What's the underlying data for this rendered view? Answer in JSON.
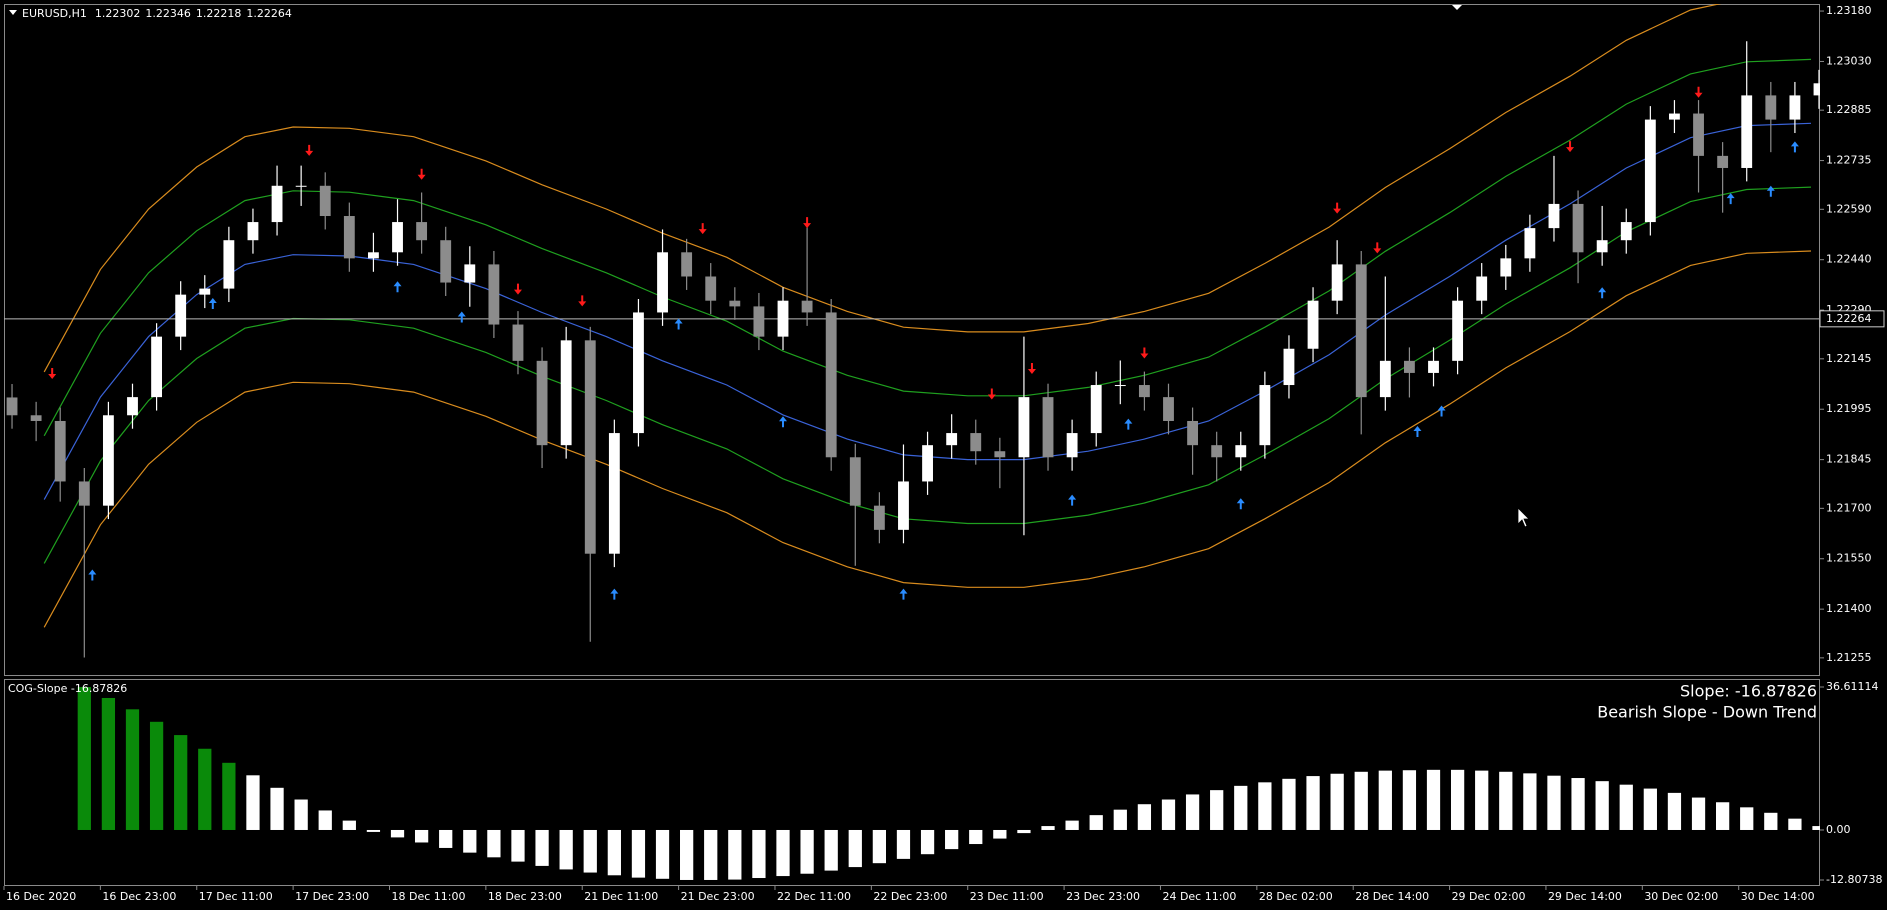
{
  "chart_data": [
    {
      "type": "candlestick",
      "title": "EURUSD,H1",
      "quote": [
        {
          "value": 1.22302,
          "label": "1.22302"
        },
        {
          "value": 1.22346,
          "label": "1.22346"
        },
        {
          "value": 1.22218,
          "label": "1.22218"
        },
        {
          "value": 1.22264,
          "label": "1.22264"
        }
      ],
      "up_color": "#ffffff",
      "down_color": "#8c8c8c",
      "x": [
        1,
        4,
        7,
        10,
        13,
        16,
        19,
        22,
        25,
        28,
        31,
        34,
        37,
        40,
        43,
        46,
        49,
        52,
        55,
        58,
        61,
        64,
        67,
        70,
        73,
        76,
        79,
        82,
        85,
        88,
        91,
        94,
        97,
        100,
        103,
        106,
        109,
        112,
        115,
        118,
        121,
        124,
        127,
        130,
        133,
        136,
        139,
        142,
        145,
        148,
        151,
        154,
        157,
        160,
        163,
        166,
        169,
        172,
        175,
        178,
        181,
        184,
        187,
        190,
        193,
        196,
        199,
        202,
        205,
        208,
        211,
        214,
        217,
        220,
        223,
        226
      ],
      "open": [
        1.2203,
        1.21977,
        1.2196,
        1.2178,
        1.21708,
        1.21977,
        1.22031,
        1.22211,
        1.22336,
        1.22354,
        1.22498,
        1.22552,
        1.2266,
        1.2266,
        1.2257,
        1.22444,
        1.22462,
        1.22552,
        1.22498,
        1.22372,
        1.22426,
        1.22247,
        1.22139,
        1.21888,
        1.222,
        1.21565,
        1.21924,
        1.22283,
        1.22462,
        1.2239,
        1.22318,
        1.22301,
        1.22211,
        1.22318,
        1.22283,
        1.21852,
        1.21708,
        1.21636,
        1.2178,
        1.21888,
        1.21924,
        1.2187,
        1.21852,
        1.22031,
        1.21852,
        1.21924,
        1.22067,
        1.22067,
        1.22031,
        1.2196,
        1.21888,
        1.21852,
        1.21888,
        1.22067,
        1.22175,
        1.22318,
        1.22426,
        1.22031,
        1.22139,
        1.22103,
        1.22139,
        1.22318,
        1.2239,
        1.22444,
        1.22534,
        1.22606,
        1.22462,
        1.22498,
        1.22552,
        1.22857,
        1.22875,
        1.22749,
        1.22713,
        1.22929,
        1.22857,
        1.22929
      ],
      "high": [
        1.2207,
        1.22017,
        1.22,
        1.2182,
        1.22017,
        1.22071,
        1.22251,
        1.22376,
        1.22394,
        1.22538,
        1.22592,
        1.2272,
        1.2272,
        1.227,
        1.2261,
        1.2252,
        1.2262,
        1.2264,
        1.22538,
        1.2248,
        1.22466,
        1.22287,
        1.22179,
        1.2224,
        1.2224,
        1.21964,
        1.22323,
        1.2253,
        1.22502,
        1.2243,
        1.22358,
        1.22341,
        1.22358,
        1.22552,
        1.22323,
        1.21892,
        1.21748,
        1.2189,
        1.21928,
        1.2198,
        1.21964,
        1.2191,
        1.22211,
        1.22071,
        1.21964,
        1.22107,
        1.2214,
        1.22107,
        1.22071,
        1.22,
        1.21928,
        1.21928,
        1.22107,
        1.22215,
        1.22358,
        1.22498,
        1.22466,
        1.2239,
        1.22179,
        1.22179,
        1.22358,
        1.2243,
        1.22484,
        1.22574,
        1.22749,
        1.22646,
        1.226,
        1.22592,
        1.22897,
        1.22915,
        1.22915,
        1.2279,
        1.2309,
        1.22969,
        1.22969,
        1.23005
      ],
      "low": [
        1.21937,
        1.219,
        1.2172,
        1.21256,
        1.21668,
        1.21937,
        1.21991,
        1.22171,
        1.22296,
        1.22314,
        1.22458,
        1.22512,
        1.226,
        1.2253,
        1.22404,
        1.22404,
        1.22422,
        1.22458,
        1.22332,
        1.223,
        1.22207,
        1.22099,
        1.2182,
        1.21848,
        1.21303,
        1.21525,
        1.21884,
        1.22243,
        1.2235,
        1.22278,
        1.22261,
        1.22171,
        1.22171,
        1.22243,
        1.21812,
        1.21529,
        1.21596,
        1.21596,
        1.2174,
        1.21848,
        1.2183,
        1.2176,
        1.2162,
        1.21812,
        1.21812,
        1.21884,
        1.2201,
        1.21991,
        1.2192,
        1.218,
        1.2178,
        1.21812,
        1.21848,
        1.22027,
        1.22135,
        1.22278,
        1.2192,
        1.21991,
        1.2203,
        1.22063,
        1.22099,
        1.22278,
        1.2235,
        1.22404,
        1.22494,
        1.2237,
        1.22422,
        1.22458,
        1.22512,
        1.22817,
        1.2264,
        1.2258,
        1.22673,
        1.2276,
        1.22817,
        1.22889
      ],
      "close": [
        1.21977,
        1.2196,
        1.2178,
        1.21708,
        1.21977,
        1.22031,
        1.22211,
        1.22336,
        1.22354,
        1.22498,
        1.22552,
        1.2266,
        1.2266,
        1.2257,
        1.22444,
        1.22462,
        1.22552,
        1.22498,
        1.22372,
        1.22426,
        1.22247,
        1.22139,
        1.21888,
        1.222,
        1.21565,
        1.21924,
        1.22283,
        1.22462,
        1.2239,
        1.22318,
        1.22301,
        1.22211,
        1.22318,
        1.22283,
        1.21852,
        1.21708,
        1.21636,
        1.2178,
        1.21888,
        1.21924,
        1.2187,
        1.21852,
        1.22031,
        1.21852,
        1.21924,
        1.22067,
        1.22067,
        1.22031,
        1.2196,
        1.21888,
        1.21852,
        1.21888,
        1.22067,
        1.22175,
        1.22318,
        1.22426,
        1.22031,
        1.22139,
        1.22103,
        1.22139,
        1.22318,
        1.2239,
        1.22444,
        1.22534,
        1.22606,
        1.22462,
        1.22498,
        1.22552,
        1.22857,
        1.22875,
        1.22749,
        1.22713,
        1.22929,
        1.22857,
        1.22929,
        1.22965
      ],
      "bands_x": [
        5,
        12,
        18,
        24,
        30,
        36,
        43,
        51,
        60,
        67,
        75,
        82,
        90,
        97,
        105,
        112,
        120,
        127,
        135,
        142,
        150,
        157,
        165,
        172,
        180,
        187,
        195,
        202,
        210,
        217,
        225
      ],
      "bands": [
        {
          "color": "#d98c1e",
          "values": [
            1.22106,
            1.22411,
            1.22591,
            1.22716,
            1.22806,
            1.22835,
            1.22831,
            1.22806,
            1.22734,
            1.22663,
            1.22591,
            1.22519,
            1.22447,
            1.22358,
            1.22286,
            1.22239,
            1.22225,
            1.22225,
            1.2225,
            1.22286,
            1.2234,
            1.22429,
            1.22537,
            1.22655,
            1.2277,
            1.22878,
            1.22986,
            1.23093,
            1.23183,
            1.23219,
            1.23226
          ]
        },
        {
          "color": "#1fa01f",
          "values": [
            1.21916,
            1.22221,
            1.22401,
            1.22526,
            1.22616,
            1.22645,
            1.22641,
            1.22616,
            1.22544,
            1.22473,
            1.22401,
            1.22329,
            1.22257,
            1.22168,
            1.22096,
            1.22049,
            1.22035,
            1.22035,
            1.2206,
            1.22096,
            1.2215,
            1.22239,
            1.22347,
            1.22465,
            1.2258,
            1.22688,
            1.22796,
            1.22903,
            1.22993,
            1.23029,
            1.23036
          ]
        },
        {
          "color": "#3a63d8",
          "values": [
            1.21726,
            1.22031,
            1.22211,
            1.22336,
            1.22426,
            1.22455,
            1.22451,
            1.22426,
            1.22354,
            1.22283,
            1.22211,
            1.22139,
            1.22067,
            1.21978,
            1.21906,
            1.21859,
            1.21845,
            1.21845,
            1.2187,
            1.21906,
            1.2196,
            1.22049,
            1.22157,
            1.22275,
            1.2239,
            1.22498,
            1.22606,
            1.22713,
            1.22803,
            1.22839,
            1.22846
          ]
        },
        {
          "color": "#1fa01f",
          "values": [
            1.21536,
            1.21841,
            1.22021,
            1.22146,
            1.22236,
            1.22265,
            1.22261,
            1.22236,
            1.22164,
            1.22093,
            1.22021,
            1.21949,
            1.21877,
            1.21788,
            1.21716,
            1.21669,
            1.21655,
            1.21655,
            1.2168,
            1.21716,
            1.2177,
            1.21859,
            1.21967,
            1.22085,
            1.222,
            1.22308,
            1.22416,
            1.22523,
            1.22613,
            1.22649,
            1.22656
          ]
        },
        {
          "color": "#d98c1e",
          "values": [
            1.21346,
            1.21651,
            1.21831,
            1.21956,
            1.22046,
            1.22075,
            1.22071,
            1.22046,
            1.21974,
            1.21903,
            1.21831,
            1.21759,
            1.21687,
            1.21598,
            1.21526,
            1.21479,
            1.21465,
            1.21465,
            1.2149,
            1.21526,
            1.2158,
            1.21669,
            1.21777,
            1.21895,
            1.2201,
            1.22118,
            1.22226,
            1.22333,
            1.22423,
            1.22459,
            1.22466
          ]
        }
      ],
      "signals": [
        {
          "direction": "down",
          "color": "#ff1a1a",
          "x": [
            6,
            38,
            52,
            64,
            72,
            87,
            100,
            123,
            128,
            142,
            166,
            171,
            195,
            211
          ],
          "values": [
            1.22085,
            1.22749,
            1.22678,
            1.22336,
            1.22301,
            1.22516,
            1.22534,
            1.22024,
            1.221,
            1.22146,
            1.22577,
            1.22459,
            1.2276,
            1.22922
          ]
        },
        {
          "direction": "up",
          "color": "#2a8cff",
          "x": [
            11,
            26,
            49,
            57,
            76,
            84,
            97,
            112,
            133,
            140,
            154,
            176,
            179,
            199,
            215,
            220,
            223
          ],
          "values": [
            1.21518,
            1.22326,
            1.22376,
            1.22286,
            1.21461,
            1.22265,
            1.21974,
            1.21461,
            1.21741,
            1.21967,
            1.2173,
            1.21945,
            1.22006,
            1.22358,
            1.22638,
            1.2266,
            1.22792
          ]
        }
      ],
      "price_line": {
        "value": 1.22264,
        "label": "1.22264"
      },
      "xlim": [
        0,
        226
      ],
      "ylim": [
        1.21204,
        1.23201
      ],
      "yticks": [
        {
          "value": 1.2318,
          "label": "1.23180"
        },
        {
          "value": 1.2303,
          "label": "1.23030"
        },
        {
          "value": 1.22885,
          "label": "1.22885"
        },
        {
          "value": 1.22735,
          "label": "1.22735"
        },
        {
          "value": 1.2259,
          "label": "1.22590"
        },
        {
          "value": 1.2244,
          "label": "1.22440"
        },
        {
          "value": 1.2229,
          "label": "1.22290"
        },
        {
          "value": 1.22145,
          "label": "1.22145"
        },
        {
          "value": 1.21995,
          "label": "1.21995"
        },
        {
          "value": 1.21845,
          "label": "1.21845"
        },
        {
          "value": 1.217,
          "label": "1.21700"
        },
        {
          "value": 1.2155,
          "label": "1.21550"
        },
        {
          "value": 1.214,
          "label": "1.21400"
        },
        {
          "value": 1.21255,
          "label": "1.21255"
        }
      ],
      "xticks": [
        {
          "value": 0,
          "label": "16 Dec 2020"
        },
        {
          "value": 12,
          "label": "16 Dec 23:00"
        },
        {
          "value": 24,
          "label": "17 Dec 11:00"
        },
        {
          "value": 36,
          "label": "17 Dec 23:00"
        },
        {
          "value": 48,
          "label": "18 Dec 11:00"
        },
        {
          "value": 60,
          "label": "18 Dec 23:00"
        },
        {
          "value": 72,
          "label": "21 Dec 11:00"
        },
        {
          "value": 84,
          "label": "21 Dec 23:00"
        },
        {
          "value": 96,
          "label": "22 Dec 11:00"
        },
        {
          "value": 108,
          "label": "22 Dec 23:00"
        },
        {
          "value": 120,
          "label": "23 Dec 11:00"
        },
        {
          "value": 132,
          "label": "23 Dec 23:00"
        },
        {
          "value": 144,
          "label": "24 Dec 11:00"
        },
        {
          "value": 156,
          "label": "28 Dec 02:00"
        },
        {
          "value": 168,
          "label": "28 Dec 14:00"
        },
        {
          "value": 180,
          "label": "29 Dec 02:00"
        },
        {
          "value": 192,
          "label": "29 Dec 14:00"
        },
        {
          "value": 204,
          "label": "30 Dec 02:00"
        },
        {
          "value": 216,
          "label": "30 Dec 14:00"
        }
      ]
    },
    {
      "type": "bar",
      "title": "COG-Slope -16.87826",
      "annotations": [
        {
          "text": "Slope: -16.87826",
          "color": "#ffffff"
        },
        {
          "text": "Bearish Slope - Down Trend",
          "color": "#f0806a"
        }
      ],
      "xlim": [
        0,
        226
      ],
      "ylim": [
        -12.80738,
        36.61114
      ],
      "yticks": [
        36.61114,
        {
          "value": 0,
          "label": "0.00"
        },
        -12.80738
      ],
      "series": [
        {
          "color": "#0a8a0a",
          "x": [
            10,
            13,
            16,
            19,
            22,
            25,
            28
          ],
          "values": [
            36.6,
            33.8,
            30.9,
            27.7,
            24.3,
            20.8,
            17.2
          ]
        },
        {
          "color": "#ffffff",
          "x": [
            31,
            34,
            37,
            40,
            43,
            46,
            49,
            52,
            55,
            58,
            61,
            64,
            67,
            70,
            73,
            76,
            79,
            82,
            85,
            88,
            91,
            94,
            97,
            100,
            103,
            106,
            109,
            112,
            115,
            118,
            121,
            124,
            127,
            130,
            133,
            136,
            139,
            142,
            145,
            148,
            151,
            154,
            157,
            160,
            163,
            166,
            169,
            172,
            175,
            178,
            181,
            184,
            187,
            190,
            193,
            196,
            199,
            202,
            205,
            208,
            211,
            214,
            217,
            220,
            223,
            226
          ],
          "values": [
            14.0,
            10.8,
            7.8,
            5.0,
            2.4,
            -0.5,
            -1.9,
            -3.2,
            -4.6,
            -5.8,
            -7.0,
            -8.1,
            -9.2,
            -10.1,
            -10.9,
            -11.6,
            -12.2,
            -12.5,
            -12.8,
            -12.8,
            -12.7,
            -12.3,
            -11.8,
            -11.2,
            -10.4,
            -9.5,
            -8.5,
            -7.4,
            -6.2,
            -4.9,
            -3.6,
            -2.2,
            -0.8,
            1.0,
            2.4,
            3.8,
            5.2,
            6.6,
            7.8,
            9.1,
            10.2,
            11.3,
            12.2,
            13.1,
            13.8,
            14.4,
            14.9,
            15.2,
            15.3,
            15.4,
            15.4,
            15.2,
            14.9,
            14.5,
            13.9,
            13.3,
            12.5,
            11.6,
            10.6,
            9.5,
            8.3,
            7.1,
            5.8,
            4.4,
            2.9,
            1.0
          ]
        }
      ]
    }
  ]
}
